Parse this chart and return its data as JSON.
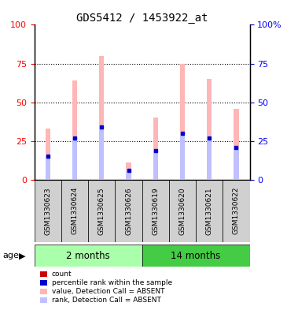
{
  "title": "GDS5412 / 1453922_at",
  "samples": [
    "GSM1330623",
    "GSM1330624",
    "GSM1330625",
    "GSM1330626",
    "GSM1330619",
    "GSM1330620",
    "GSM1330621",
    "GSM1330622"
  ],
  "absent_values": [
    33,
    64,
    80,
    11,
    40,
    75,
    65,
    46
  ],
  "absent_ranks": [
    15,
    27,
    34,
    6,
    19,
    30,
    27,
    21
  ],
  "ylim": [
    0,
    100
  ],
  "yticks": [
    0,
    25,
    50,
    75,
    100
  ],
  "absent_bar_color": "#FFB6B6",
  "absent_rank_color": "#C0C0FF",
  "count_color": "#CC0000",
  "percentile_color": "#0000CC",
  "group_2m_color": "#AAFFAA",
  "group_14m_color": "#44CC44",
  "legend_items": [
    {
      "label": "count",
      "color": "#CC0000"
    },
    {
      "label": "percentile rank within the sample",
      "color": "#0000CC"
    },
    {
      "label": "value, Detection Call = ABSENT",
      "color": "#FFB6B6"
    },
    {
      "label": "rank, Detection Call = ABSENT",
      "color": "#C0C0FF"
    }
  ],
  "groups_def": [
    {
      "name": "2 months",
      "start": 0,
      "end": 3,
      "color": "#AAFFAA"
    },
    {
      "name": "14 months",
      "start": 4,
      "end": 7,
      "color": "#44CC44"
    }
  ]
}
